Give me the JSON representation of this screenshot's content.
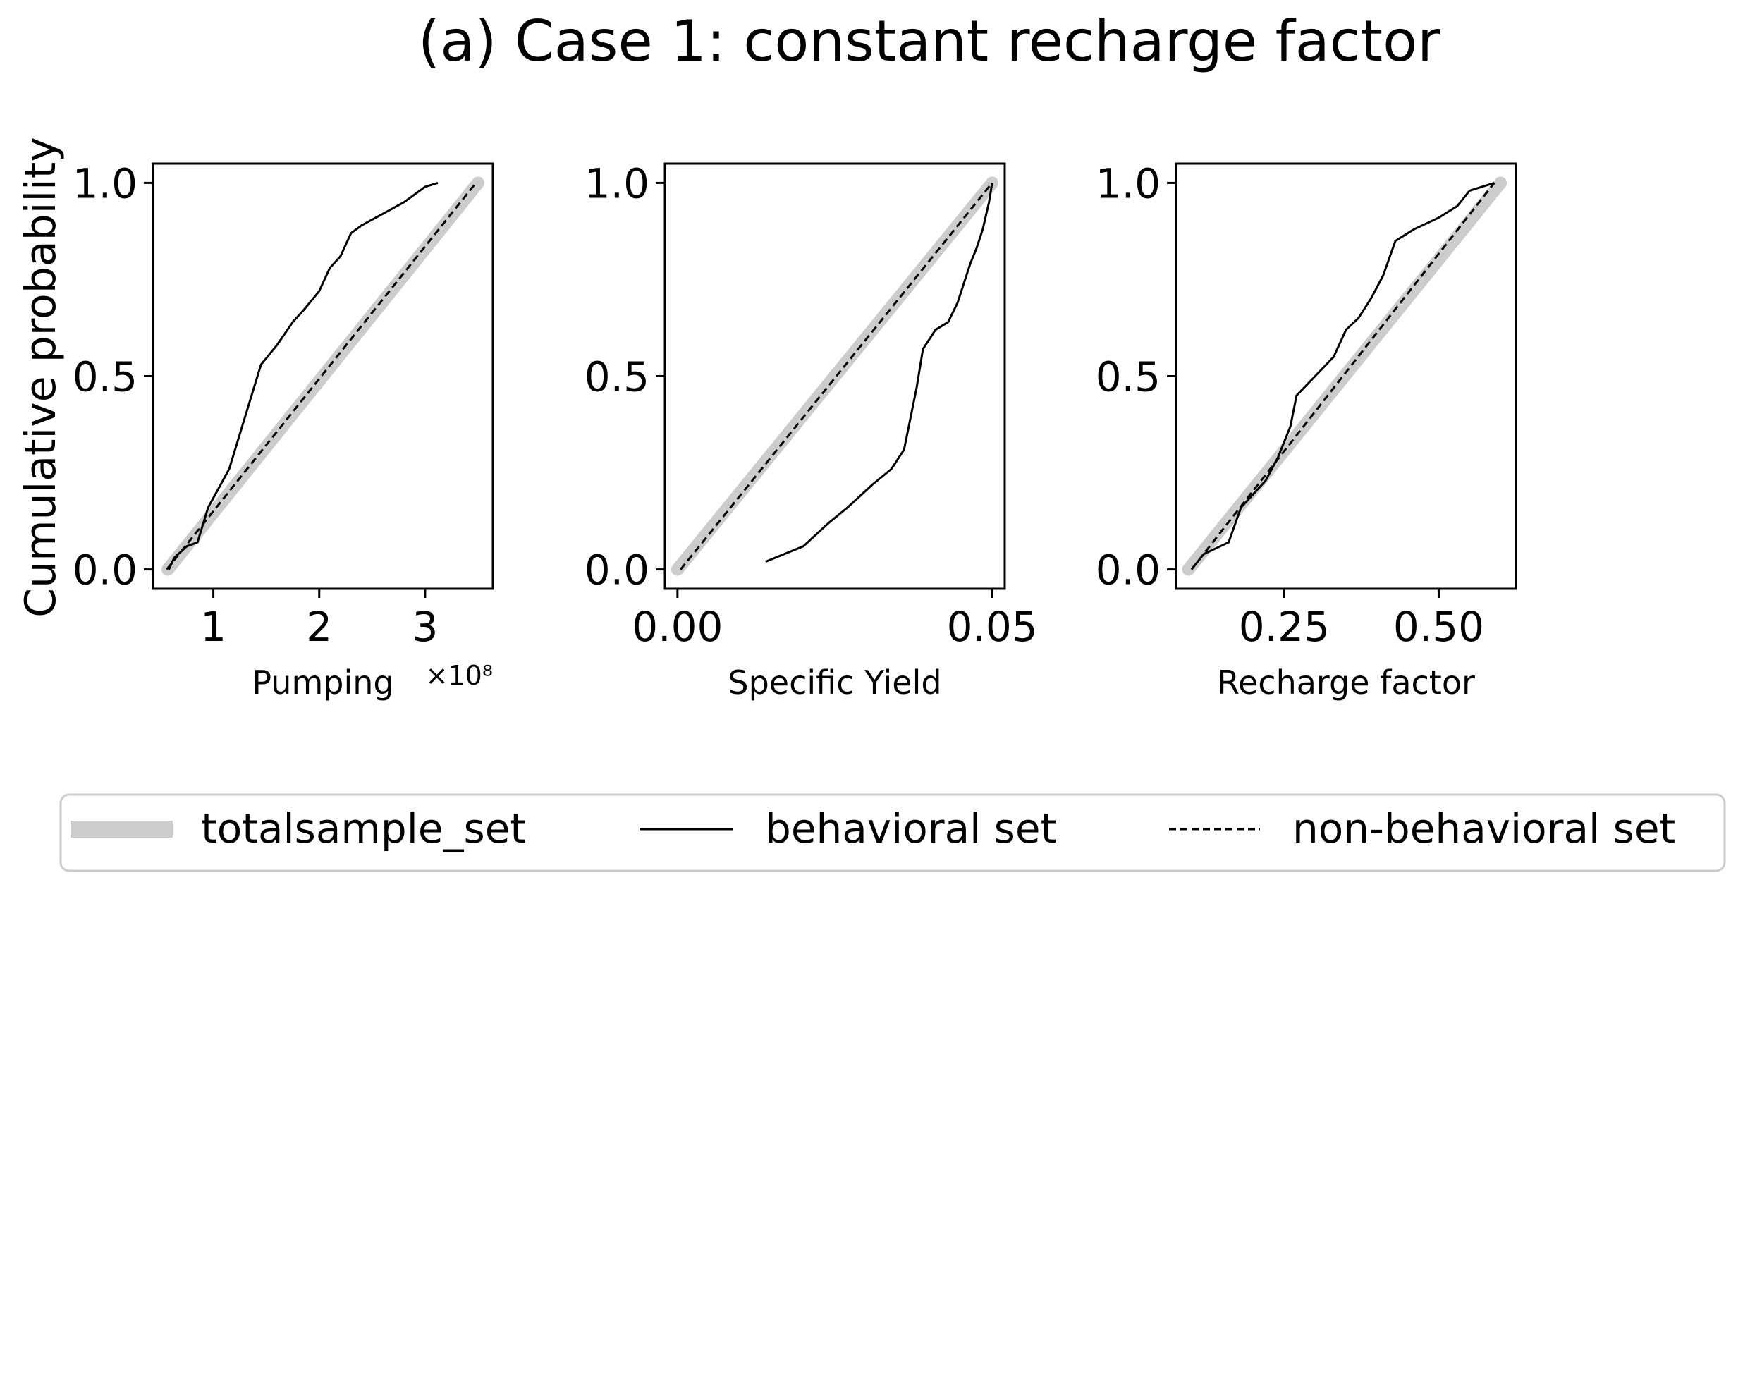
{
  "title": "(a) Case 1: constant recharge factor",
  "ylabel": "Cumulative probability",
  "colors": {
    "totalsample": "#cccccc",
    "behavioral": "#000000",
    "nonbehavioral": "#000000"
  },
  "legend": {
    "position": "bottom",
    "entries": [
      {
        "label": "totalsample_set",
        "style": "thick-gray"
      },
      {
        "label": "behavioral set",
        "style": "solid-black"
      },
      {
        "label": "non-behavioral set",
        "style": "dashed-black"
      }
    ]
  },
  "chart_data": [
    {
      "type": "line",
      "xlabel": "Pumping",
      "x_offset_text": "×10⁸",
      "xlim": [
        0.43,
        3.64
      ],
      "ylim": [
        -0.05,
        1.05
      ],
      "xticks": [
        {
          "value": 1,
          "label": "1"
        },
        {
          "value": 2,
          "label": "2"
        },
        {
          "value": 3,
          "label": "3"
        }
      ],
      "yticks": [
        {
          "value": 0,
          "label": "0.0"
        },
        {
          "value": 0.5,
          "label": "0.5"
        },
        {
          "value": 1,
          "label": "1.0"
        }
      ],
      "series": [
        {
          "name": "totalsample_set",
          "x": [
            0.57,
            3.5
          ],
          "y": [
            0,
            1
          ]
        },
        {
          "name": "behavioral set",
          "x": [
            0.58,
            0.63,
            0.75,
            0.85,
            0.95,
            1.05,
            1.15,
            1.25,
            1.35,
            1.45,
            1.6,
            1.75,
            1.85,
            2.0,
            2.1,
            2.2,
            2.3,
            2.4,
            2.6,
            2.8,
            3.0,
            3.12
          ],
          "y": [
            0,
            0.03,
            0.06,
            0.07,
            0.16,
            0.21,
            0.26,
            0.35,
            0.44,
            0.53,
            0.58,
            0.64,
            0.67,
            0.72,
            0.78,
            0.81,
            0.87,
            0.89,
            0.92,
            0.95,
            0.99,
            1.0
          ]
        },
        {
          "name": "non-behavioral set",
          "x": [
            0.56,
            3.48
          ],
          "y": [
            0,
            1
          ]
        }
      ]
    },
    {
      "type": "line",
      "xlabel": "Specific Yield",
      "xlim": [
        -0.002,
        0.052
      ],
      "ylim": [
        -0.05,
        1.05
      ],
      "xticks": [
        {
          "value": 0,
          "label": "0.00"
        },
        {
          "value": 0.05,
          "label": "0.05"
        }
      ],
      "yticks": [
        {
          "value": 0,
          "label": "0.0"
        },
        {
          "value": 0.5,
          "label": "0.5"
        },
        {
          "value": 1,
          "label": "1.0"
        }
      ],
      "series": [
        {
          "name": "totalsample_set",
          "x": [
            0.0,
            0.05
          ],
          "y": [
            0,
            1
          ]
        },
        {
          "name": "behavioral set",
          "x": [
            0.014,
            0.02,
            0.024,
            0.027,
            0.031,
            0.034,
            0.036,
            0.037,
            0.038,
            0.039,
            0.041,
            0.043,
            0.0445,
            0.0455,
            0.0465,
            0.0475,
            0.0485,
            0.0495,
            0.05
          ],
          "y": [
            0.02,
            0.06,
            0.12,
            0.16,
            0.22,
            0.26,
            0.31,
            0.39,
            0.47,
            0.57,
            0.62,
            0.64,
            0.69,
            0.74,
            0.79,
            0.83,
            0.88,
            0.95,
            1.0
          ]
        },
        {
          "name": "non-behavioral set",
          "x": [
            0.0005,
            0.05
          ],
          "y": [
            0,
            1
          ]
        }
      ]
    },
    {
      "type": "line",
      "xlabel": "Recharge factor",
      "xlim": [
        0.075,
        0.625
      ],
      "ylim": [
        -0.05,
        1.05
      ],
      "xticks": [
        {
          "value": 0.25,
          "label": "0.25"
        },
        {
          "value": 0.5,
          "label": "0.50"
        }
      ],
      "yticks": [
        {
          "value": 0,
          "label": "0.0"
        },
        {
          "value": 0.5,
          "label": "0.5"
        },
        {
          "value": 1,
          "label": "1.0"
        }
      ],
      "series": [
        {
          "name": "totalsample_set",
          "x": [
            0.095,
            0.6
          ],
          "y": [
            0,
            1
          ]
        },
        {
          "name": "behavioral set",
          "x": [
            0.1,
            0.12,
            0.16,
            0.18,
            0.22,
            0.24,
            0.26,
            0.27,
            0.3,
            0.33,
            0.35,
            0.37,
            0.39,
            0.41,
            0.43,
            0.46,
            0.5,
            0.53,
            0.55,
            0.59
          ],
          "y": [
            0,
            0.04,
            0.07,
            0.16,
            0.23,
            0.29,
            0.37,
            0.45,
            0.5,
            0.55,
            0.62,
            0.65,
            0.7,
            0.76,
            0.85,
            0.88,
            0.91,
            0.94,
            0.98,
            1.0
          ]
        },
        {
          "name": "non-behavioral set",
          "x": [
            0.1,
            0.59
          ],
          "y": [
            0,
            1
          ]
        }
      ]
    }
  ]
}
